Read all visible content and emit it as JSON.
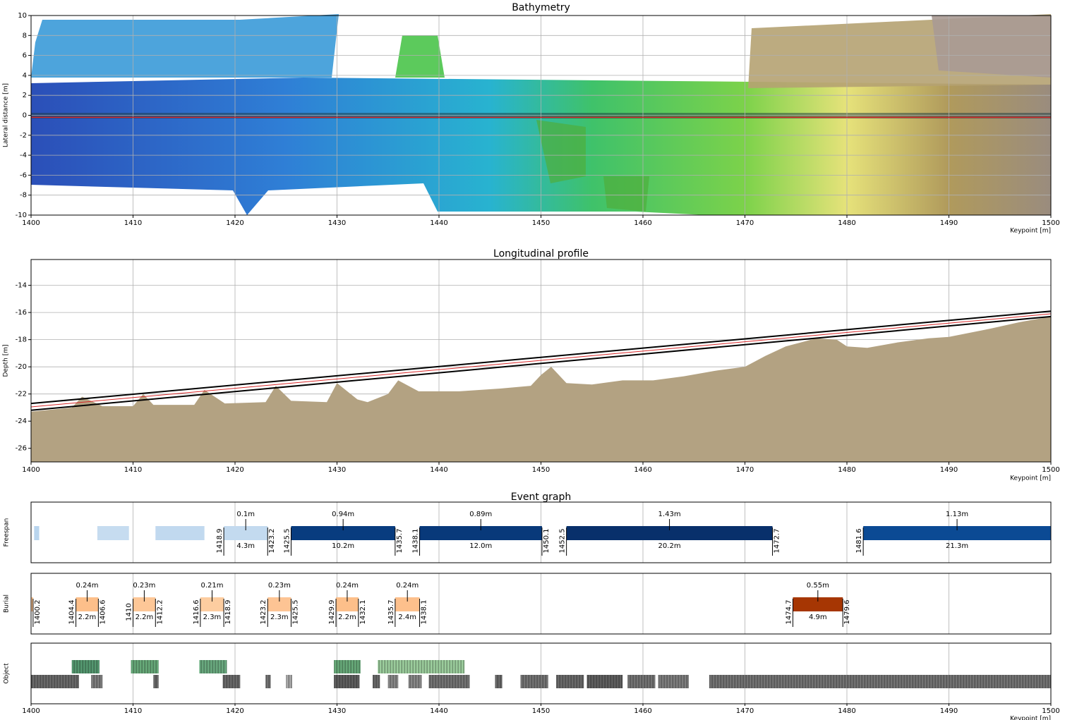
{
  "chart_data": [
    {
      "type": "heatmap",
      "title": "Bathymetry",
      "x_label": "Keypoint [m]",
      "y_label": "Lateral distance [m]",
      "xlim": [
        1400,
        1500
      ],
      "xticks": [
        1400,
        1410,
        1420,
        1430,
        1440,
        1450,
        1460,
        1470,
        1480,
        1490,
        1500
      ],
      "ylim": [
        -10,
        10
      ],
      "yticks": [
        -10,
        -8,
        -6,
        -4,
        -2,
        0,
        2,
        4,
        6,
        8,
        10
      ],
      "grid": true,
      "series": [
        {
          "color": "#d62728",
          "x": [
            1400,
            1500
          ],
          "values": [
            -0.2,
            -0.2
          ]
        }
      ]
    },
    {
      "type": "profile",
      "title": "Longitudinal profile",
      "x_label": "Keypoint [m]",
      "y_label": "Depth [m]",
      "xlim": [
        1400,
        1500
      ],
      "xticks": [
        1400,
        1410,
        1420,
        1430,
        1440,
        1450,
        1460,
        1470,
        1480,
        1490,
        1500
      ],
      "ylim": [
        -27,
        -12.1
      ],
      "yticks": [
        -26,
        -24,
        -22,
        -20,
        -18,
        -16,
        -14
      ],
      "grid": true,
      "seabed": {
        "color": "#b3a282",
        "x": [
          1400,
          1404,
          1405,
          1407,
          1410,
          1411,
          1412,
          1416,
          1417,
          1419,
          1423,
          1424,
          1425.5,
          1429,
          1430,
          1432,
          1433,
          1435,
          1436,
          1438,
          1442,
          1446,
          1449,
          1450,
          1451,
          1452.5,
          1455,
          1458,
          1461,
          1464,
          1467,
          1470,
          1472,
          1474,
          1477,
          1479,
          1480,
          1482,
          1485,
          1488,
          1490,
          1494,
          1497,
          1500
        ],
        "values": [
          -23.3,
          -23.0,
          -22.2,
          -22.9,
          -22.9,
          -22.0,
          -22.8,
          -22.8,
          -21.7,
          -22.7,
          -22.6,
          -21.4,
          -22.5,
          -22.6,
          -21.2,
          -22.4,
          -22.6,
          -22.0,
          -21.0,
          -21.8,
          -21.8,
          -21.6,
          -21.4,
          -20.6,
          -20.0,
          -21.2,
          -21.3,
          -21.0,
          -21.0,
          -20.7,
          -20.3,
          -20.0,
          -19.2,
          -18.5,
          -17.9,
          -18.0,
          -18.5,
          -18.6,
          -18.2,
          -17.9,
          -17.8,
          -17.2,
          -16.7,
          -16.3
        ]
      },
      "series": [
        {
          "color": "#000000",
          "x": [
            1400,
            1500
          ],
          "values": [
            -22.7,
            -15.9
          ]
        },
        {
          "color": "#000000",
          "x": [
            1400,
            1500
          ],
          "values": [
            -23.2,
            -16.3
          ]
        },
        {
          "color": "#d62728",
          "x": [
            1400,
            1500
          ],
          "values": [
            -22.95,
            -16.1
          ]
        }
      ]
    },
    {
      "type": "event",
      "title": "Event graph",
      "x_label": "Keypoint [m]",
      "xlim": [
        1400,
        1500
      ],
      "xticks": [
        1400,
        1410,
        1420,
        1430,
        1440,
        1450,
        1460,
        1470,
        1480,
        1490,
        1500
      ],
      "panels": [
        {
          "name": "Freespan",
          "events": [
            {
              "start": 1400.3,
              "end": 1400.8,
              "color": "#b9d5ee"
            },
            {
              "start": 1406.5,
              "end": 1409.6,
              "color": "#c6dcf0"
            },
            {
              "start": 1412.2,
              "end": 1417.0,
              "color": "#c1d9ef"
            },
            {
              "start": 1418.9,
              "end": 1423.2,
              "length": 4.3,
              "length_label": "4.3m",
              "height": 0.1,
              "height_label": "0.1m",
              "color": "#c3daef"
            },
            {
              "start": 1425.5,
              "end": 1435.7,
              "length": 10.2,
              "length_label": "10.2m",
              "height": 0.94,
              "height_label": "0.94m",
              "color": "#083c7f"
            },
            {
              "start": 1438.1,
              "end": 1450.1,
              "length": 12.0,
              "length_label": "12.0m",
              "height": 0.89,
              "height_label": "0.89m",
              "color": "#08397a"
            },
            {
              "start": 1452.5,
              "end": 1472.7,
              "length": 20.2,
              "length_label": "20.2m",
              "height": 1.43,
              "height_label": "1.43m",
              "color": "#08306b"
            },
            {
              "start": 1481.6,
              "length": 21.3,
              "length_label": "21.3m",
              "height": 1.13,
              "height_label": "1.13m",
              "color": "#0b4a94"
            }
          ]
        },
        {
          "name": "Burial",
          "events": [
            {
              "end": 1400.2,
              "color": "#fdc593"
            },
            {
              "start": 1404.4,
              "end": 1406.6,
              "length": 2.2,
              "length_label": "2.2m",
              "height": 0.24,
              "height_label": "0.24m",
              "color": "#fdbf8a"
            },
            {
              "start": 1410.0,
              "end": 1412.2,
              "length": 2.2,
              "length_label": "2.2m",
              "height": 0.23,
              "height_label": "0.23m",
              "color": "#fdc797"
            },
            {
              "start": 1416.6,
              "end": 1418.9,
              "length": 2.3,
              "length_label": "2.3m",
              "height": 0.21,
              "height_label": "0.21m",
              "color": "#fdcda0"
            },
            {
              "start": 1423.2,
              "end": 1425.5,
              "length": 2.3,
              "length_label": "2.3m",
              "height": 0.23,
              "height_label": "0.23m",
              "color": "#fdc494"
            },
            {
              "start": 1429.9,
              "end": 1432.1,
              "length": 2.2,
              "length_label": "2.2m",
              "height": 0.24,
              "height_label": "0.24m",
              "color": "#fdbf8a"
            },
            {
              "start": 1435.7,
              "end": 1438.1,
              "length": 2.4,
              "length_label": "2.4m",
              "height": 0.24,
              "height_label": "0.24m",
              "color": "#fdc08c"
            },
            {
              "start": 1474.7,
              "end": 1479.6,
              "length": 4.9,
              "length_label": "4.9m",
              "height": 0.55,
              "height_label": "0.55m",
              "color": "#a63603"
            }
          ]
        },
        {
          "name": "Object",
          "events": [
            {
              "start": 1404.0,
              "end": 1406.7,
              "color": "#006d2c"
            },
            {
              "start": 1409.8,
              "end": 1412.5,
              "color": "#1e8a3c"
            },
            {
              "start": 1416.5,
              "end": 1419.2,
              "color": "#238b45"
            },
            {
              "start": 1429.7,
              "end": 1432.3,
              "color": "#1e8a3c"
            },
            {
              "start": 1434.0,
              "end": 1442.5,
              "color": "#74c476"
            },
            {
              "start": 1400.0,
              "end": 1404.7,
              "color": "#222222"
            },
            {
              "start": 1405.9,
              "end": 1407.0,
              "color": "#444444"
            },
            {
              "start": 1412.0,
              "end": 1412.5,
              "color": "#222222"
            },
            {
              "start": 1418.8,
              "end": 1420.5,
              "color": "#222222"
            },
            {
              "start": 1423.0,
              "end": 1423.5,
              "color": "#333333"
            },
            {
              "start": 1425.0,
              "end": 1425.6,
              "color": "#888888"
            },
            {
              "start": 1429.7,
              "end": 1432.2,
              "color": "#111111"
            },
            {
              "start": 1433.5,
              "end": 1434.2,
              "color": "#222222"
            },
            {
              "start": 1435.0,
              "end": 1436.0,
              "color": "#555555"
            },
            {
              "start": 1437.0,
              "end": 1438.3,
              "color": "#555555"
            },
            {
              "start": 1439.0,
              "end": 1443.0,
              "color": "#333333"
            },
            {
              "start": 1445.5,
              "end": 1446.2,
              "color": "#222222"
            },
            {
              "start": 1448.0,
              "end": 1450.7,
              "color": "#333333"
            },
            {
              "start": 1451.5,
              "end": 1454.2,
              "color": "#222222"
            },
            {
              "start": 1454.5,
              "end": 1458.0,
              "color": "#111111"
            },
            {
              "start": 1458.5,
              "end": 1461.2,
              "color": "#333333"
            },
            {
              "start": 1461.5,
              "end": 1464.5,
              "color": "#444444"
            },
            {
              "start": 1466.5,
              "end": 1500.0,
              "color": "#333333"
            }
          ]
        }
      ]
    }
  ]
}
